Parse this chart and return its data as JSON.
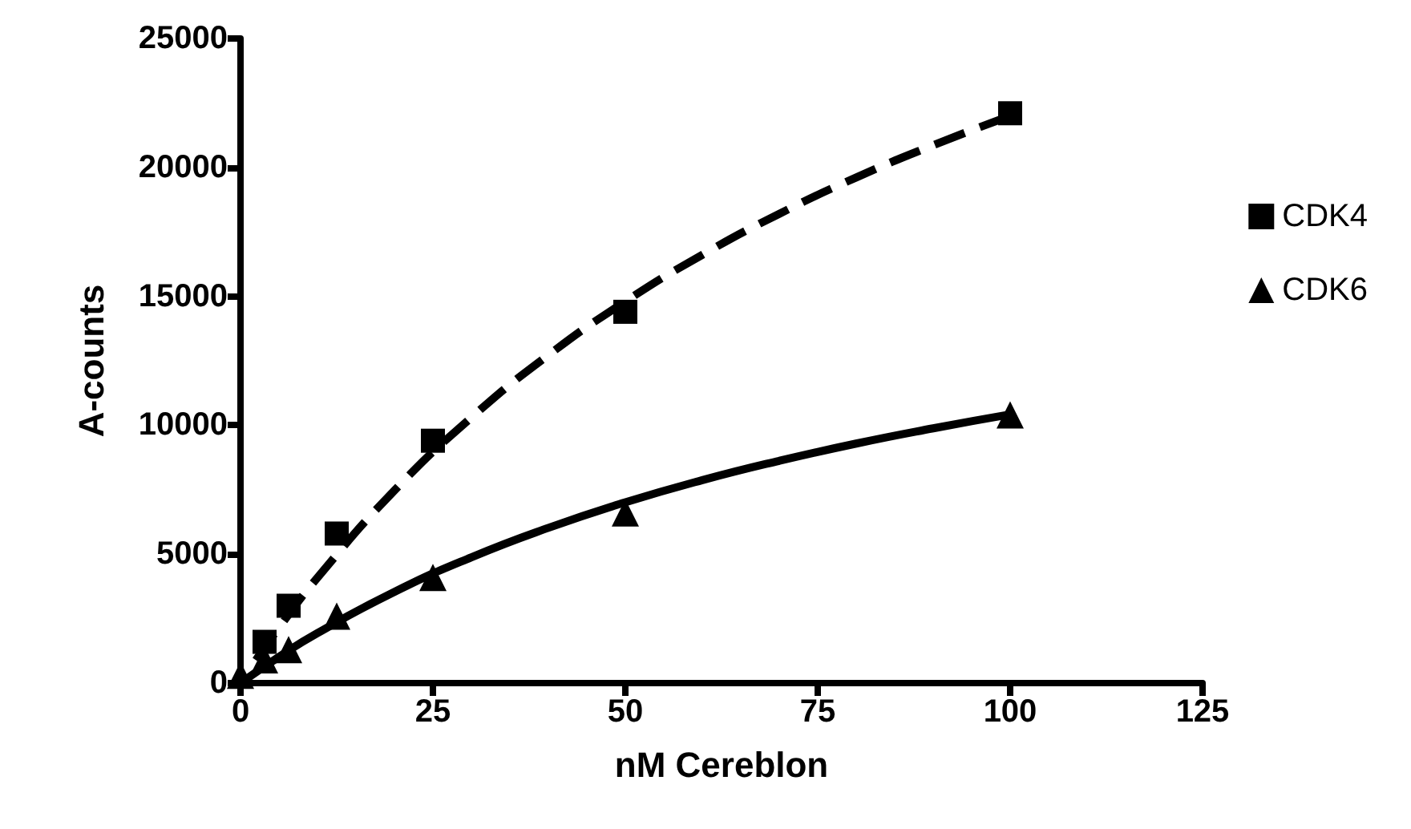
{
  "chart_data": {
    "type": "scatter",
    "xlabel": "nM Cereblon",
    "ylabel": "A-counts",
    "xlim": [
      0,
      125
    ],
    "xticks": [
      0,
      25,
      50,
      75,
      100,
      125
    ],
    "ylim": [
      0,
      25000
    ],
    "yticks": [
      0,
      5000,
      10000,
      15000,
      20000,
      25000
    ],
    "grid": false,
    "legend": "right",
    "series": [
      {
        "name": "CDK4",
        "marker": "square",
        "color": "#000000",
        "x": [
          3.125,
          6.25,
          12.5,
          25,
          50,
          100
        ],
        "values": [
          1600,
          3000,
          5800,
          9400,
          14400,
          22100
        ]
      },
      {
        "name": "CDK6",
        "marker": "triangle",
        "color": "#000000",
        "x": [
          0,
          3.125,
          6.25,
          12.5,
          25,
          50,
          100
        ],
        "values": [
          300,
          900,
          1300,
          2600,
          4100,
          6600,
          10400
        ]
      },
      {
        "type": "line",
        "line_style": "dashed",
        "marker": "none",
        "color": "#000000",
        "x": [
          2,
          5,
          10,
          20,
          30,
          40,
          50,
          60,
          70,
          80,
          90,
          100
        ],
        "values": [
          890,
          2150,
          4090,
          7470,
          10300,
          12720,
          14800,
          16610,
          18200,
          19610,
          20860,
          22000
        ]
      },
      {
        "type": "line",
        "line_style": "solid",
        "marker": "none",
        "color": "#000000",
        "x": [
          0,
          5,
          10,
          20,
          30,
          40,
          50,
          60,
          70,
          80,
          90,
          100
        ],
        "values": [
          0,
          1020,
          1940,
          3540,
          4880,
          6020,
          7010,
          7870,
          8620,
          9290,
          9880,
          10420
        ]
      }
    ]
  }
}
